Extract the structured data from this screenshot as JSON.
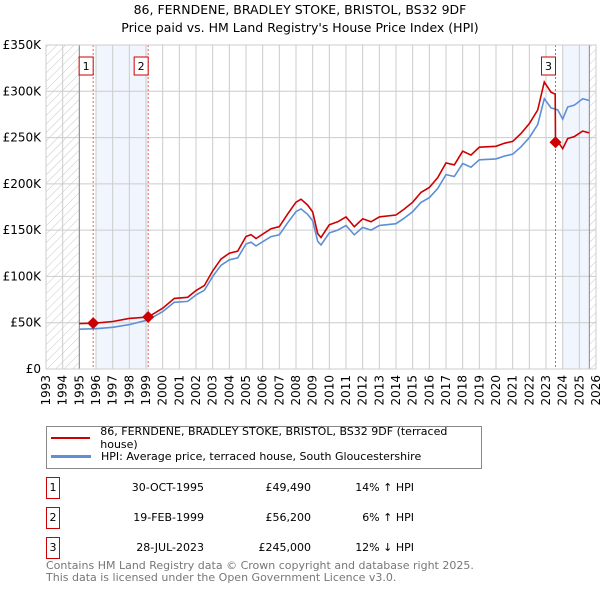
{
  "chart_data": {
    "type": "line",
    "title": "86, FERNDENE, BRADLEY STOKE, BRISTOL, BS32 9DF",
    "subtitle": "Price paid vs. HM Land Registry's House Price Index (HPI)",
    "xlim": [
      1993,
      2026
    ],
    "ylim": [
      0,
      350000
    ],
    "x_ticks": [
      "1993",
      "1994",
      "1995",
      "1996",
      "1997",
      "1998",
      "1999",
      "2000",
      "2001",
      "2002",
      "2003",
      "2004",
      "2005",
      "2006",
      "2007",
      "2008",
      "2009",
      "2010",
      "2011",
      "2012",
      "2013",
      "2014",
      "2015",
      "2016",
      "2017",
      "2018",
      "2019",
      "2020",
      "2021",
      "2022",
      "2023",
      "2024",
      "2025",
      "2026"
    ],
    "y_ticks": [
      {
        "v": 0,
        "label": "£0"
      },
      {
        "v": 50000,
        "label": "£50K"
      },
      {
        "v": 100000,
        "label": "£100K"
      },
      {
        "v": 150000,
        "label": "£150K"
      },
      {
        "v": 200000,
        "label": "£200K"
      },
      {
        "v": 250000,
        "label": "£250K"
      },
      {
        "v": 300000,
        "label": "£300K"
      },
      {
        "v": 350000,
        "label": "£350K"
      }
    ],
    "grid": true,
    "hatched_ranges": [
      [
        1993,
        1995
      ],
      [
        2025.6,
        2026
      ]
    ],
    "shaded_ranges": [
      [
        1996,
        1999.13
      ],
      [
        2024,
        2025.6
      ]
    ],
    "series": [
      {
        "name": "86, FERNDENE, BRADLEY STOKE, BRISTOL, BS32 9DF (terraced house)",
        "color": "#cc0000",
        "x": [
          1995,
          1996,
          1997,
          1998,
          1999.13,
          2000,
          2000.7,
          2001.5,
          2002,
          2002.5,
          2003,
          2003.5,
          2004,
          2004.5,
          2005,
          2005.3,
          2005.6,
          2006.5,
          2007,
          2007.5,
          2008,
          2008.3,
          2008.7,
          2009,
          2009.3,
          2009.5,
          2010,
          2010.5,
          2011,
          2011.5,
          2012,
          2012.5,
          2013,
          2014,
          2014.5,
          2015,
          2015.5,
          2016,
          2016.5,
          2017,
          2017.5,
          2018,
          2018.5,
          2019,
          2020,
          2020.5,
          2021,
          2021.5,
          2022,
          2022.5,
          2022.9,
          2023.3,
          2023.55,
          2023.57,
          2023.7,
          2024,
          2024.3,
          2024.7,
          2025.2,
          2025.6
        ],
        "y": [
          49000,
          49600,
          51300,
          54700,
          56200,
          65700,
          76300,
          77400,
          84800,
          90100,
          106000,
          118700,
          125100,
          127200,
          143100,
          145200,
          141000,
          151600,
          153700,
          167500,
          180200,
          183400,
          177000,
          169600,
          146300,
          142000,
          155800,
          159000,
          164300,
          153700,
          162200,
          159000,
          164300,
          166400,
          172800,
          180200,
          190800,
          196100,
          206700,
          222600,
          220500,
          235300,
          231100,
          239600,
          240600,
          243800,
          245900,
          254400,
          265000,
          279800,
          310000,
          299000,
          297000,
          245000,
          246000,
          238000,
          249000,
          251000,
          257000,
          255000
        ]
      },
      {
        "name": "HPI: Average price, terraced house, South Gloucestershire",
        "color": "#5b8fd6",
        "x": [
          1995,
          1996,
          1997,
          1998,
          1999.13,
          2000,
          2000.7,
          2001.5,
          2002,
          2002.5,
          2003,
          2003.5,
          2004,
          2004.5,
          2005,
          2005.3,
          2005.6,
          2006.5,
          2007,
          2007.5,
          2008,
          2008.3,
          2008.7,
          2009,
          2009.3,
          2009.5,
          2010,
          2010.5,
          2011,
          2011.5,
          2012,
          2012.5,
          2013,
          2014,
          2014.5,
          2015,
          2015.5,
          2016,
          2016.5,
          2017,
          2017.5,
          2018,
          2018.5,
          2019,
          2020,
          2020.5,
          2021,
          2021.5,
          2022,
          2022.5,
          2022.9,
          2023.3,
          2023.7,
          2024,
          2024.3,
          2024.7,
          2025.2,
          2025.6
        ],
        "y": [
          43000,
          43500,
          45000,
          48000,
          53000,
          62000,
          72000,
          73000,
          80000,
          85000,
          100000,
          112000,
          118000,
          120000,
          135000,
          137000,
          133000,
          143000,
          145000,
          158000,
          170000,
          173000,
          167000,
          160000,
          138000,
          134000,
          147000,
          150000,
          155000,
          145000,
          153000,
          150000,
          155000,
          157000,
          163000,
          170000,
          180000,
          185000,
          195000,
          210000,
          208000,
          222000,
          218000,
          226000,
          227000,
          230000,
          232000,
          240000,
          250000,
          264000,
          292000,
          282000,
          280000,
          270000,
          283000,
          285000,
          292000,
          290000
        ]
      }
    ],
    "sales": [
      {
        "label": "1",
        "x": 1995.83,
        "y": 49490
      },
      {
        "label": "2",
        "x": 1999.13,
        "y": 56200
      },
      {
        "label": "3",
        "x": 2023.57,
        "y": 245000
      }
    ]
  },
  "legend": {
    "property": "86, FERNDENE, BRADLEY STOKE, BRISTOL, BS32 9DF (terraced house)",
    "hpi": "HPI: Average price, terraced house, South Gloucestershire"
  },
  "transactions": [
    {
      "num": "1",
      "date": "30-OCT-1995",
      "price": "£49,490",
      "hpi": "14% ↑ HPI"
    },
    {
      "num": "2",
      "date": "19-FEB-1999",
      "price": "£56,200",
      "hpi": "6% ↑ HPI"
    },
    {
      "num": "3",
      "date": "28-JUL-2023",
      "price": "£245,000",
      "hpi": "12% ↓ HPI"
    }
  ],
  "footer": {
    "line1": "Contains HM Land Registry data © Crown copyright and database right 2025.",
    "line2": "This data is licensed under the Open Government Licence v3.0."
  }
}
